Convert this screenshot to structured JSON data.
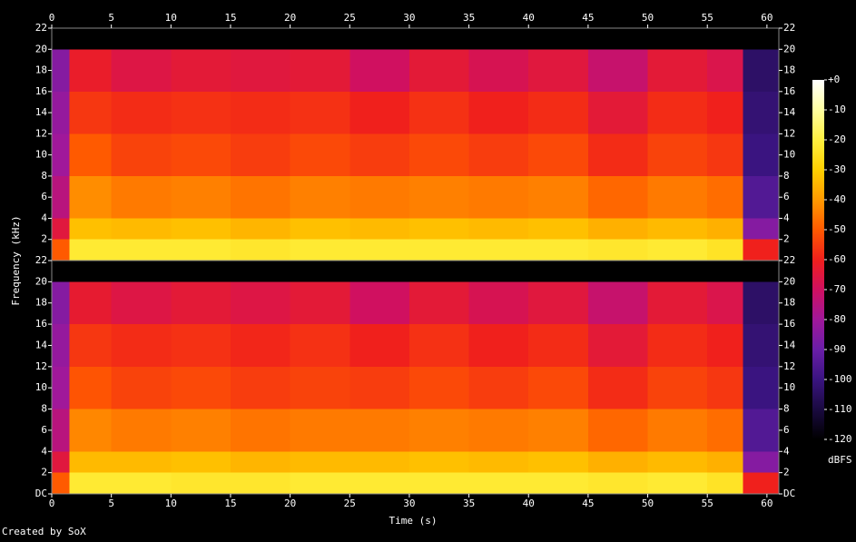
{
  "chart_data": {
    "type": "heatmap",
    "x_label": "Time (s)",
    "y_label": "Frequency (kHz)",
    "footer": "Created by SoX",
    "xlim": [
      0,
      61
    ],
    "xticks": [
      0,
      5,
      10,
      15,
      20,
      25,
      30,
      35,
      40,
      45,
      50,
      55,
      60
    ],
    "time_bins": [
      0,
      1.5,
      5,
      10,
      15,
      20,
      25,
      30,
      35,
      40,
      45,
      50,
      55,
      58,
      61
    ],
    "freq_bins": [
      0,
      2,
      4,
      8,
      12,
      16,
      20,
      22
    ],
    "channels": [
      {
        "ylim": [
          0,
          22
        ],
        "yticks": [
          2,
          4,
          6,
          8,
          10,
          12,
          14,
          16,
          18,
          20,
          22
        ],
        "values": [
          [
            -50,
            -22,
            -22,
            -22,
            -23,
            -22,
            -22,
            -22,
            -22,
            -22,
            -23,
            -22,
            -24,
            -60
          ],
          [
            -65,
            -33,
            -34,
            -33,
            -35,
            -33,
            -34,
            -33,
            -34,
            -33,
            -36,
            -34,
            -36,
            -85
          ],
          [
            -75,
            -42,
            -45,
            -44,
            -46,
            -44,
            -45,
            -44,
            -45,
            -44,
            -48,
            -45,
            -47,
            -95
          ],
          [
            -80,
            -50,
            -54,
            -53,
            -55,
            -53,
            -55,
            -53,
            -55,
            -53,
            -58,
            -54,
            -56,
            -100
          ],
          [
            -82,
            -56,
            -58,
            -57,
            -58,
            -57,
            -60,
            -57,
            -60,
            -58,
            -64,
            -58,
            -60,
            -102
          ],
          [
            -85,
            -62,
            -66,
            -64,
            -65,
            -64,
            -70,
            -64,
            -68,
            -65,
            -72,
            -64,
            -67,
            -104
          ],
          [
            -120,
            -120,
            -120,
            -120,
            -120,
            -120,
            -120,
            -120,
            -120,
            -120,
            -120,
            -120,
            -120,
            -120
          ]
        ]
      },
      {
        "ylim": [
          0,
          22
        ],
        "yticks": [
          {
            "value": 0,
            "label": "DC"
          },
          2,
          4,
          6,
          8,
          10,
          12,
          14,
          16,
          18,
          20,
          22
        ],
        "values": [
          [
            -50,
            -22,
            -22,
            -23,
            -23,
            -22,
            -22,
            -22,
            -22,
            -22,
            -23,
            -22,
            -24,
            -60
          ],
          [
            -65,
            -34,
            -34,
            -33,
            -35,
            -34,
            -34,
            -33,
            -34,
            -33,
            -36,
            -34,
            -36,
            -85
          ],
          [
            -75,
            -43,
            -45,
            -44,
            -46,
            -45,
            -45,
            -44,
            -45,
            -44,
            -48,
            -45,
            -47,
            -95
          ],
          [
            -80,
            -51,
            -54,
            -53,
            -55,
            -54,
            -55,
            -53,
            -55,
            -53,
            -58,
            -54,
            -56,
            -100
          ],
          [
            -82,
            -56,
            -58,
            -57,
            -59,
            -57,
            -60,
            -57,
            -60,
            -58,
            -64,
            -58,
            -60,
            -102
          ],
          [
            -85,
            -63,
            -66,
            -64,
            -66,
            -64,
            -70,
            -64,
            -68,
            -65,
            -72,
            -64,
            -67,
            -104
          ],
          [
            -120,
            -120,
            -120,
            -120,
            -120,
            -120,
            -120,
            -120,
            -120,
            -120,
            -120,
            -120,
            -120,
            -120
          ]
        ]
      }
    ],
    "colorbar": {
      "label": "dBFS",
      "zlim": [
        -120,
        0
      ],
      "zticks": [
        {
          "value": 0,
          "label": "+0"
        },
        -10,
        -20,
        -30,
        -40,
        -50,
        -60,
        -70,
        -80,
        -90,
        -100,
        -110,
        -120
      ],
      "colormap": [
        "#000000",
        "#1a0a40",
        "#3a1480",
        "#6a1ea8",
        "#a0189a",
        "#d01060",
        "#f0201c",
        "#ff5a00",
        "#ff9a00",
        "#ffd000",
        "#fff040",
        "#ffffa0",
        "#ffffff"
      ]
    }
  }
}
